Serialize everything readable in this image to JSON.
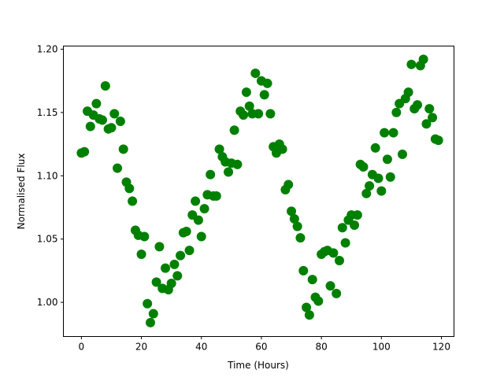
{
  "chart_data": {
    "type": "scatter",
    "title": "",
    "xlabel": "Time (Hours)",
    "ylabel": "Normalised Flux",
    "xlim": [
      -6,
      124.2
    ],
    "ylim": [
      0.973,
      1.2025
    ],
    "xticks": [
      0,
      20,
      40,
      60,
      80,
      100,
      120
    ],
    "xtick_labels": [
      "0",
      "20",
      "40",
      "60",
      "80",
      "100",
      "120"
    ],
    "yticks": [
      1.0,
      1.05,
      1.1,
      1.15,
      1.2
    ],
    "ytick_labels": [
      "1.00",
      "1.05",
      "1.10",
      "1.15",
      "1.20"
    ],
    "grid": false,
    "marker_color": "#008000",
    "x": [
      0,
      1,
      2,
      3,
      4,
      5,
      6,
      7,
      8,
      9,
      10,
      11,
      12,
      13,
      14,
      15,
      16,
      17,
      18,
      19,
      20,
      21,
      22,
      23,
      24,
      25,
      26,
      27,
      28,
      29,
      30,
      31,
      32,
      33,
      34,
      35,
      36,
      37,
      38,
      39,
      40,
      41,
      42,
      43,
      44,
      45,
      46,
      47,
      48,
      49,
      50,
      51,
      52,
      53,
      54,
      55,
      56,
      57,
      58,
      59,
      60,
      61,
      62,
      63,
      64,
      65,
      66,
      67,
      68,
      69,
      70,
      71,
      72,
      73,
      74,
      75,
      76,
      77,
      78,
      79,
      80,
      81,
      82,
      83,
      84,
      85,
      86,
      87,
      88,
      89,
      90,
      91,
      92,
      93,
      94,
      95,
      96,
      97,
      98,
      99,
      100,
      101,
      102,
      103,
      104,
      105,
      106,
      107,
      108,
      109,
      110,
      111,
      112,
      113,
      114,
      115,
      116,
      117,
      118,
      119
    ],
    "y": [
      1.118,
      1.119,
      1.151,
      1.139,
      1.148,
      1.157,
      1.145,
      1.144,
      1.171,
      1.137,
      1.138,
      1.149,
      1.106,
      1.143,
      1.121,
      1.095,
      1.09,
      1.08,
      1.057,
      1.053,
      1.038,
      1.052,
      0.999,
      0.984,
      0.991,
      1.016,
      1.044,
      1.011,
      1.027,
      1.01,
      1.015,
      1.03,
      1.021,
      1.037,
      1.055,
      1.056,
      1.041,
      1.069,
      1.08,
      1.065,
      1.052,
      1.074,
      1.085,
      1.101,
      1.084,
      1.084,
      1.121,
      1.115,
      1.111,
      1.103,
      1.11,
      1.136,
      1.109,
      1.151,
      1.148,
      1.166,
      1.155,
      1.149,
      1.181,
      1.149,
      1.175,
      1.164,
      1.173,
      1.149,
      1.123,
      1.118,
      1.125,
      1.121,
      1.089,
      1.093,
      1.072,
      1.066,
      1.06,
      1.051,
      1.025,
      0.996,
      0.99,
      1.018,
      1.004,
      1.001,
      1.038,
      1.04,
      1.041,
      1.013,
      1.039,
      1.007,
      1.033,
      1.059,
      1.047,
      1.065,
      1.069,
      1.061,
      1.069,
      1.109,
      1.107,
      1.086,
      1.092,
      1.101,
      1.122,
      1.098,
      1.088,
      1.134,
      1.113,
      1.099,
      1.134,
      1.15,
      1.157,
      1.117,
      1.161,
      1.166,
      1.188,
      1.153,
      1.156,
      1.187,
      1.192,
      1.141,
      1.153,
      1.146,
      1.129,
      1.128
    ]
  }
}
